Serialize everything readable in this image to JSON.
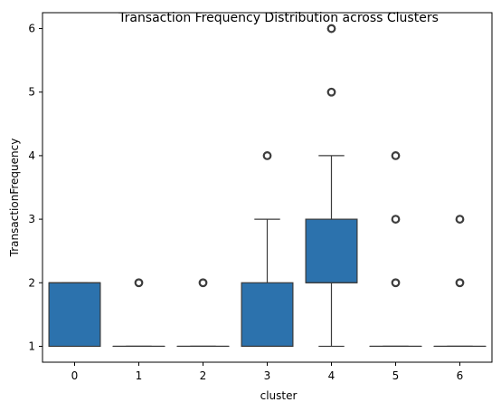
{
  "chart_data": {
    "type": "box",
    "title": "Transaction Frequency Distribution across Clusters",
    "xlabel": "cluster",
    "ylabel": "TransactionFrequency",
    "categories": [
      "0",
      "1",
      "2",
      "3",
      "4",
      "5",
      "6"
    ],
    "yticks": [
      1,
      2,
      3,
      4,
      5,
      6
    ],
    "ylim": [
      0.75,
      6.25
    ],
    "grid": false,
    "legend": "none",
    "box_color": "#2c72ad",
    "line_color": "#3b3b3b",
    "boxes": [
      {
        "category": "0",
        "whislo": 1,
        "q1": 1,
        "med": 2,
        "q3": 2,
        "whishi": 2,
        "fliers": []
      },
      {
        "category": "1",
        "whislo": 1,
        "q1": 1,
        "med": 1,
        "q3": 1,
        "whishi": 1,
        "fliers": [
          2
        ]
      },
      {
        "category": "2",
        "whislo": 1,
        "q1": 1,
        "med": 1,
        "q3": 1,
        "whishi": 1,
        "fliers": [
          2
        ]
      },
      {
        "category": "3",
        "whislo": 1,
        "q1": 1,
        "med": 1,
        "q3": 2,
        "whishi": 3,
        "fliers": [
          4
        ]
      },
      {
        "category": "4",
        "whislo": 1,
        "q1": 2,
        "med": 2,
        "q3": 3,
        "whishi": 4,
        "fliers": [
          5,
          6
        ]
      },
      {
        "category": "5",
        "whislo": 1,
        "q1": 1,
        "med": 1,
        "q3": 1,
        "whishi": 1,
        "fliers": [
          2,
          3,
          4
        ]
      },
      {
        "category": "6",
        "whislo": 1,
        "q1": 1,
        "med": 1,
        "q3": 1,
        "whishi": 1,
        "fliers": [
          2,
          3
        ]
      }
    ]
  }
}
